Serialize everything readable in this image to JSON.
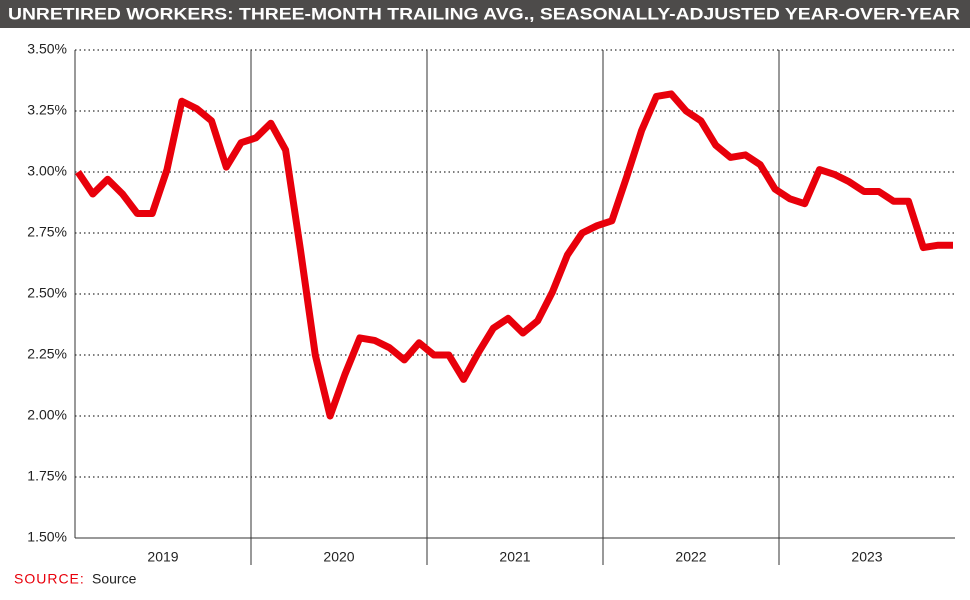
{
  "chart_data": {
    "type": "line",
    "title": "UNRETIRED WORKERS: THREE-MONTH TRAILING AVG., SEASONALLY-ADJUSTED YEAR-OVER-YEAR",
    "year_labels": [
      "2019",
      "2020",
      "2021",
      "2022",
      "2023"
    ],
    "series": [
      {
        "color": "#e8000b",
        "values": [
          3.0,
          2.91,
          2.97,
          2.91,
          2.83,
          2.83,
          3.01,
          3.29,
          3.26,
          3.21,
          3.02,
          3.12,
          3.14,
          3.2,
          3.09,
          2.68,
          2.25,
          2.0,
          2.17,
          2.32,
          2.31,
          2.28,
          2.23,
          2.3,
          2.25,
          2.25,
          2.15,
          2.26,
          2.36,
          2.4,
          2.34,
          2.39,
          2.51,
          2.66,
          2.75,
          2.78,
          2.8,
          2.98,
          3.17,
          3.31,
          3.32,
          3.25,
          3.21,
          3.11,
          3.06,
          3.07,
          3.03,
          2.93,
          2.89,
          2.87,
          3.01,
          2.99,
          2.96,
          2.92,
          2.92,
          2.88,
          2.88,
          2.69,
          2.7,
          2.7
        ]
      }
    ],
    "ylim": [
      1.5,
      3.5
    ],
    "yticks": [
      {
        "value": 1.5,
        "label": "1.50%"
      },
      {
        "value": 1.75,
        "label": "1.75%"
      },
      {
        "value": 2.0,
        "label": "2.00%"
      },
      {
        "value": 2.25,
        "label": "2.25%"
      },
      {
        "value": 2.5,
        "label": "2.50%"
      },
      {
        "value": 2.75,
        "label": "2.75%"
      },
      {
        "value": 3.0,
        "label": "3.00%"
      },
      {
        "value": 3.25,
        "label": "3.25%"
      },
      {
        "value": 3.5,
        "label": "3.50%"
      }
    ],
    "grid": true,
    "source_label": "SOURCE:",
    "source": "Source"
  }
}
